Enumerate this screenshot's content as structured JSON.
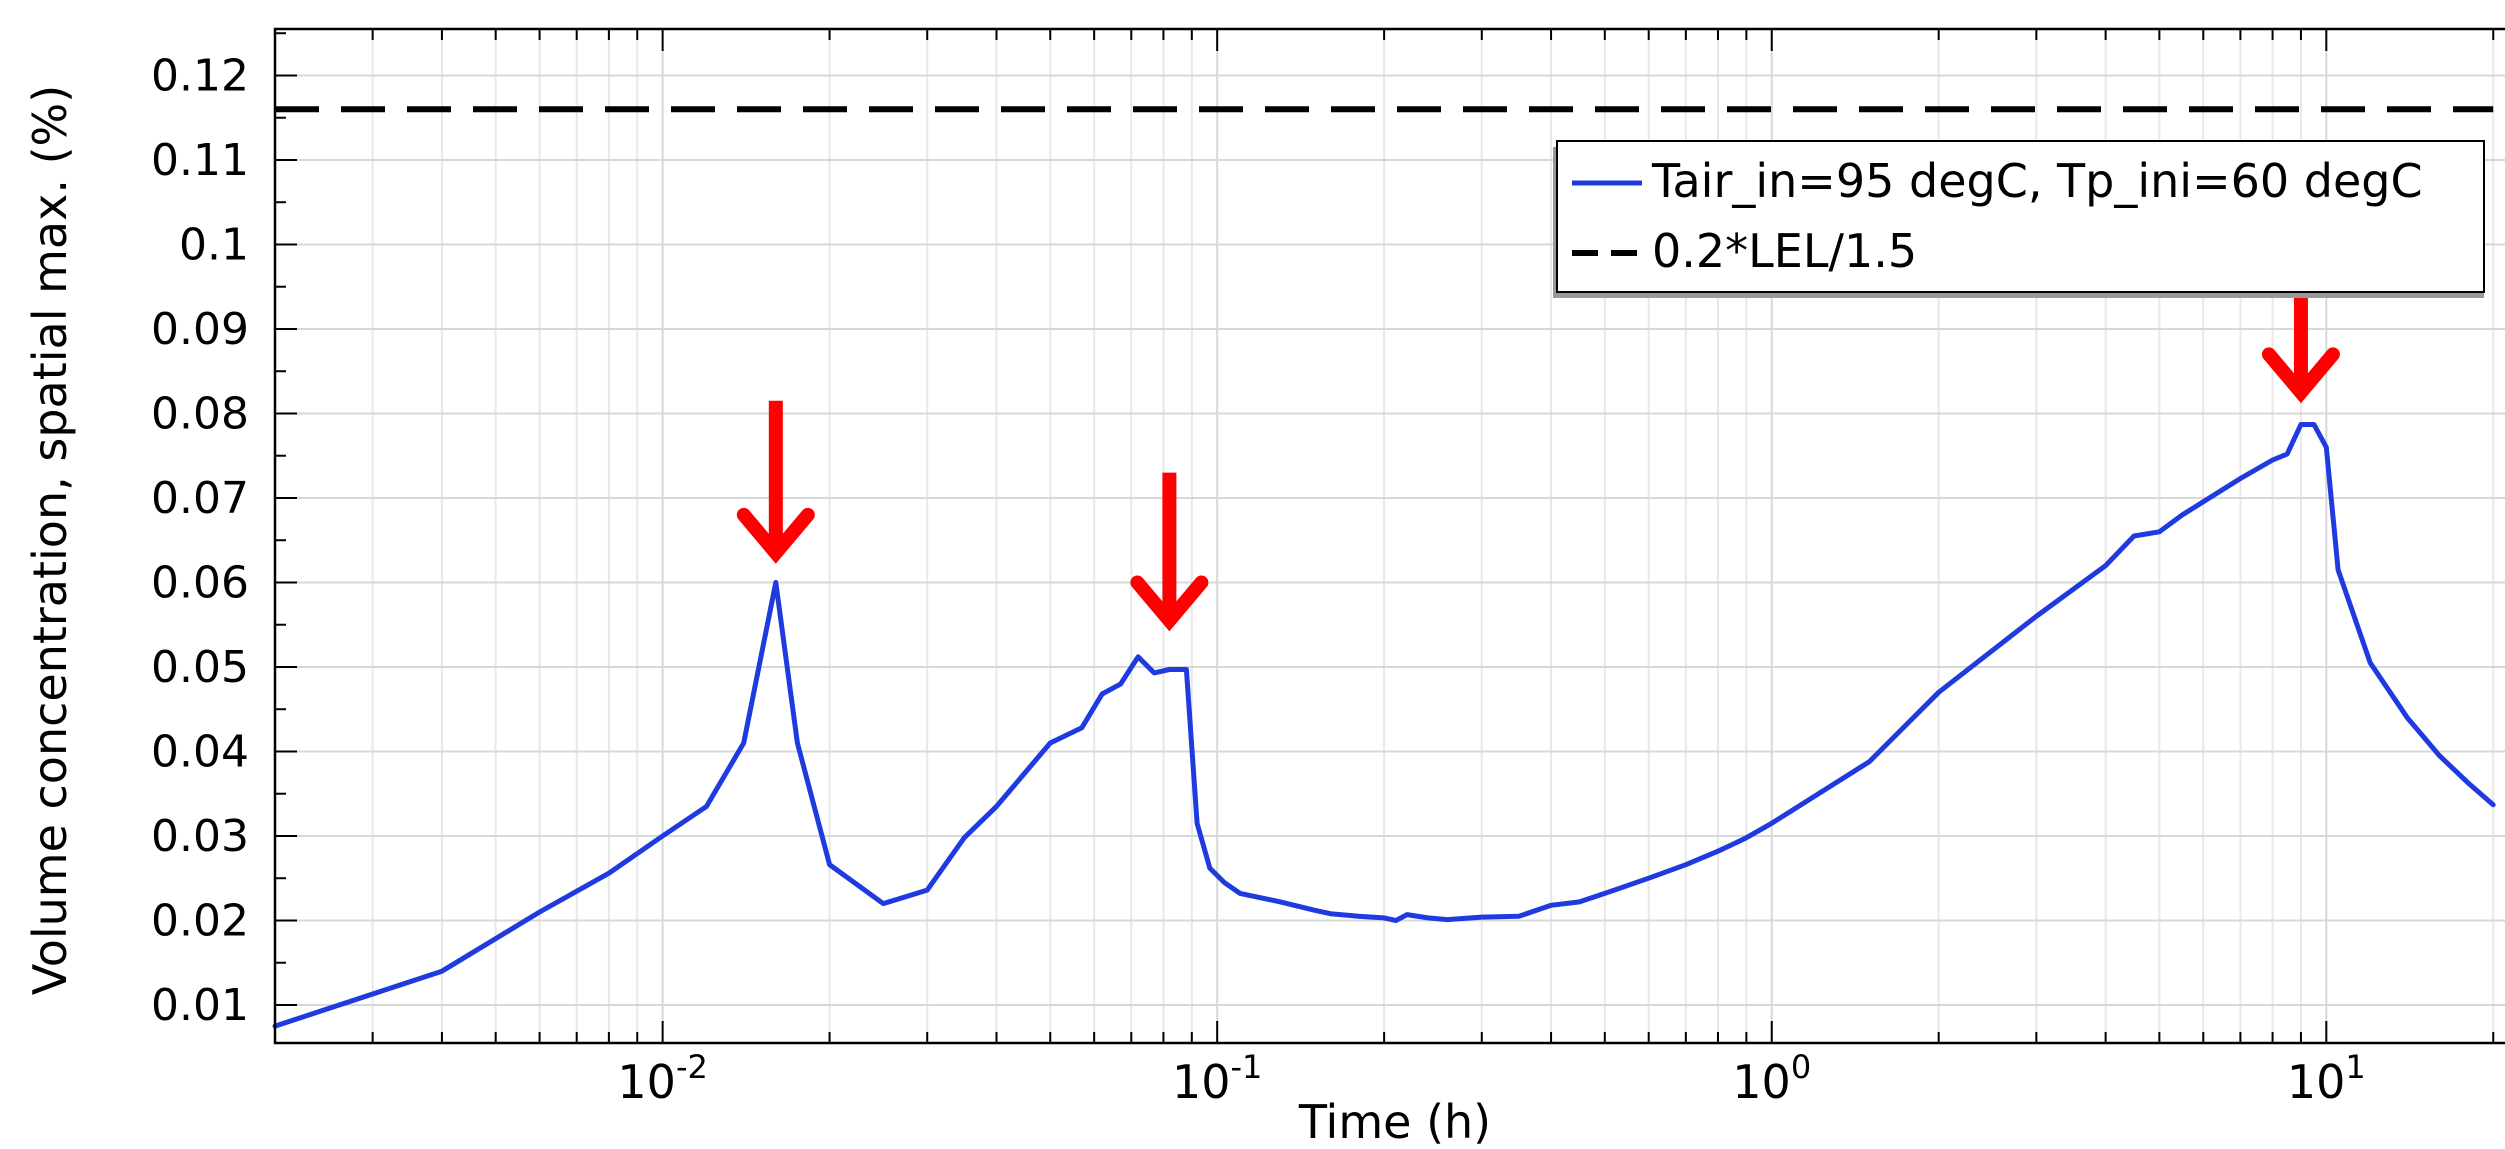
{
  "chart_data": {
    "type": "line",
    "title": "",
    "xlabel": "Time (h)",
    "ylabel": "Volume concentration, spatial max. (%)",
    "x_scale": "log",
    "xlim": [
      0.002,
      21
    ],
    "ylim": [
      0.0055,
      0.1255
    ],
    "grid": true,
    "legend_position": "top-right",
    "x_major_ticks": [
      {
        "value": 0.01,
        "base": "10",
        "exp": "-2"
      },
      {
        "value": 0.1,
        "base": "10",
        "exp": "-1"
      },
      {
        "value": 1,
        "base": "10",
        "exp": "0"
      },
      {
        "value": 10,
        "base": "10",
        "exp": "1"
      }
    ],
    "y_ticks": [
      {
        "value": 0.01,
        "label": "0.01"
      },
      {
        "value": 0.02,
        "label": "0.02"
      },
      {
        "value": 0.03,
        "label": "0.03"
      },
      {
        "value": 0.04,
        "label": "0.04"
      },
      {
        "value": 0.05,
        "label": "0.05"
      },
      {
        "value": 0.06,
        "label": "0.06"
      },
      {
        "value": 0.07,
        "label": "0.07"
      },
      {
        "value": 0.08,
        "label": "0.08"
      },
      {
        "value": 0.09,
        "label": "0.09"
      },
      {
        "value": 0.1,
        "label": "0.1"
      },
      {
        "value": 0.11,
        "label": "0.11"
      },
      {
        "value": 0.12,
        "label": "0.12"
      }
    ],
    "series": [
      {
        "name": "Tair_in=95 degC, Tp_ini=60 degC",
        "color": "#1f3be0",
        "style": "solid",
        "x": [
          0.002,
          0.003,
          0.004,
          0.006,
          0.008,
          0.01,
          0.012,
          0.014,
          0.016,
          0.0175,
          0.02,
          0.025,
          0.03,
          0.035,
          0.04,
          0.05,
          0.057,
          0.062,
          0.067,
          0.072,
          0.077,
          0.082,
          0.088,
          0.092,
          0.097,
          0.103,
          0.11,
          0.13,
          0.15,
          0.16,
          0.18,
          0.2,
          0.21,
          0.22,
          0.24,
          0.26,
          0.3,
          0.35,
          0.4,
          0.45,
          0.5,
          0.6,
          0.7,
          0.8,
          0.85,
          0.9,
          1.0,
          1.5,
          2.0,
          3.0,
          4.0,
          4.5,
          5.0,
          5.5,
          7.0,
          8.0,
          8.5,
          9.0,
          9.5,
          10.0,
          10.5,
          12.0,
          14.0,
          16.0,
          18.0,
          20.0
        ],
        "y": [
          0.0075,
          0.0113,
          0.014,
          0.021,
          0.0256,
          0.03,
          0.0335,
          0.041,
          0.06,
          0.041,
          0.0266,
          0.022,
          0.0236,
          0.0298,
          0.0335,
          0.041,
          0.0428,
          0.0468,
          0.048,
          0.0512,
          0.0493,
          0.0497,
          0.0497,
          0.0315,
          0.0262,
          0.0245,
          0.0232,
          0.0222,
          0.0212,
          0.0208,
          0.0205,
          0.0203,
          0.02,
          0.0207,
          0.0203,
          0.0201,
          0.0204,
          0.0205,
          0.0218,
          0.0222,
          0.0232,
          0.025,
          0.0266,
          0.0282,
          0.029,
          0.0298,
          0.0315,
          0.0388,
          0.047,
          0.056,
          0.062,
          0.0655,
          0.066,
          0.068,
          0.0723,
          0.0745,
          0.0752,
          0.0787,
          0.0787,
          0.076,
          0.0615,
          0.0505,
          0.044,
          0.0395,
          0.0363,
          0.0337
        ]
      },
      {
        "name": "0.2*LEL/1.5",
        "color": "#000000",
        "style": "dashed",
        "x": [
          0.002,
          20.0
        ],
        "y": [
          0.116,
          0.116
        ]
      }
    ],
    "annotations": [
      {
        "type": "arrow",
        "color": "#ff0000",
        "x": 0.016,
        "y_tip": 0.0635,
        "y_tail": 0.0815
      },
      {
        "type": "arrow",
        "color": "#ff0000",
        "x": 0.082,
        "y_tip": 0.0555,
        "y_tail": 0.073
      },
      {
        "type": "arrow",
        "color": "#ff0000",
        "x": 9.0,
        "y_tip": 0.0825,
        "y_tail": 0.0995
      }
    ]
  }
}
